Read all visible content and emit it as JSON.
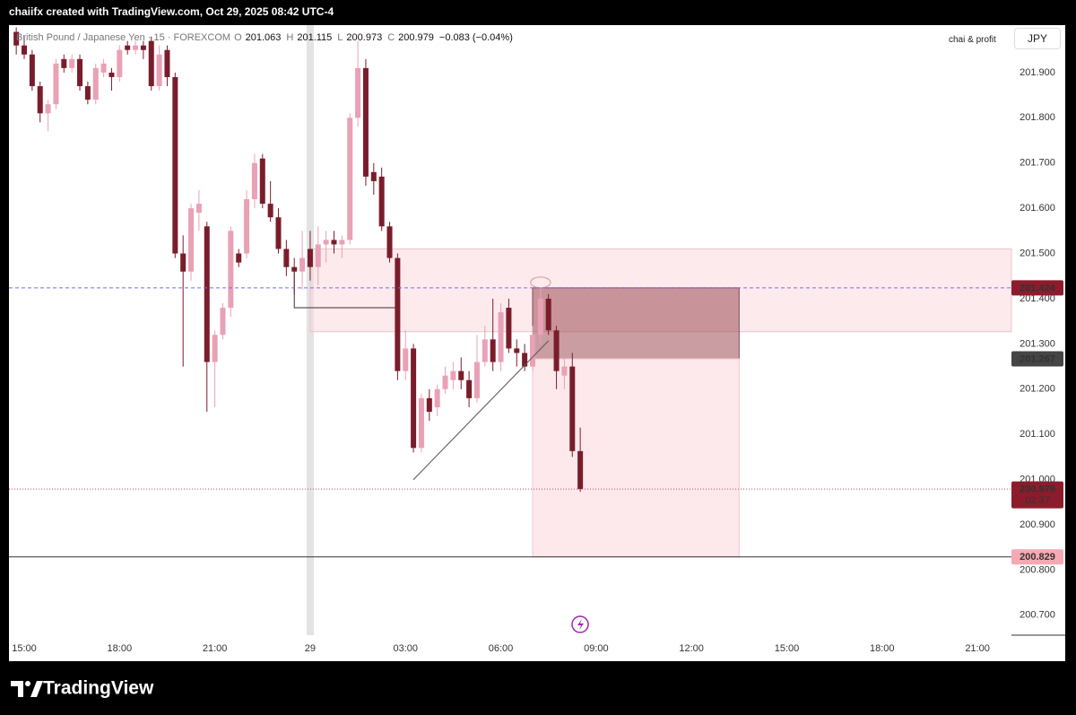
{
  "header": {
    "text": "chaiifx created with TradingView.com, Oct 29, 2025 08:42 UTC-4"
  },
  "chart_data": {
    "type": "candlestick",
    "symbol": "British Pound / Japanese Yen · 15 · FOREXCOM",
    "ohlc_legend": [
      {
        "label": "O",
        "value": 201.063
      },
      {
        "label": "H",
        "value": 201.115
      },
      {
        "label": "L",
        "value": 200.973
      },
      {
        "label": "C",
        "value": 200.979
      }
    ],
    "change": "−0.083 (−0.04%)",
    "account": "chai & profit",
    "currency": "JPY",
    "x": [
      -0.25,
      0,
      0.25,
      0.5,
      0.75,
      1,
      1.25,
      1.5,
      1.75,
      2,
      2.25,
      2.5,
      2.75,
      3,
      3.25,
      3.5,
      3.75,
      4,
      4.25,
      4.5,
      4.75,
      5,
      5.25,
      5.5,
      5.75,
      6,
      6.25,
      6.5,
      6.75,
      7,
      7.25,
      7.5,
      7.75,
      8,
      8.25,
      8.5,
      8.75,
      9,
      9.25,
      9.5,
      9.75,
      10,
      10.25,
      10.5,
      10.75,
      11,
      11.25,
      11.5,
      11.75,
      12,
      12.25,
      12.5,
      12.75,
      13,
      13.25,
      13.5,
      13.75,
      14,
      14.25,
      14.5,
      14.75,
      15,
      15.25,
      15.5,
      15.75,
      16,
      16.25,
      16.5,
      16.75,
      17,
      17.25,
      17.5
    ],
    "open": [
      201.99,
      201.96,
      201.94,
      201.87,
      201.81,
      201.83,
      201.93,
      201.91,
      201.93,
      201.87,
      201.84,
      201.9,
      201.9,
      201.89,
      201.96,
      201.95,
      201.96,
      201.97,
      201.87,
      201.95,
      201.89,
      201.5,
      201.46,
      201.59,
      201.56,
      201.26,
      201.32,
      201.38,
      201.5,
      201.5,
      201.62,
      201.71,
      201.61,
      201.58,
      201.51,
      201.47,
      201.46,
      201.51,
      201.47,
      201.52,
      201.53,
      201.52,
      201.53,
      201.8,
      201.91,
      201.68,
      201.67,
      201.56,
      201.49,
      201.24,
      201.29,
      201.07,
      201.18,
      201.16,
      201.2,
      201.22,
      201.24,
      201.22,
      201.18,
      201.26,
      201.31,
      201.26,
      201.38,
      201.29,
      201.28,
      201.25,
      201.32,
      201.4,
      201.33,
      201.23,
      201.25,
      201.063
    ],
    "high": [
      202.0,
      201.98,
      201.95,
      201.88,
      201.84,
      201.93,
      201.94,
      201.94,
      201.94,
      201.88,
      201.92,
      201.93,
      201.91,
      201.96,
      201.97,
      201.97,
      201.97,
      201.98,
      201.96,
      201.96,
      201.9,
      201.54,
      201.61,
      201.64,
      201.57,
      201.33,
      201.39,
      201.56,
      201.51,
      201.64,
      201.72,
      201.72,
      201.66,
      201.6,
      201.53,
      201.49,
      201.55,
      201.55,
      201.56,
      201.55,
      201.55,
      201.54,
      201.81,
      201.97,
      201.93,
      201.7,
      201.69,
      201.57,
      201.5,
      201.33,
      201.3,
      201.19,
      201.2,
      201.21,
      201.25,
      201.26,
      201.27,
      201.24,
      201.32,
      201.34,
      201.4,
      201.39,
      201.4,
      201.31,
      201.3,
      201.34,
      201.42,
      201.41,
      201.34,
      201.27,
      201.28,
      201.115
    ],
    "low": [
      201.94,
      201.93,
      201.86,
      201.79,
      201.77,
      201.82,
      201.9,
      201.9,
      201.86,
      201.83,
      201.83,
      201.89,
      201.86,
      201.88,
      201.94,
      201.94,
      201.93,
      201.86,
      201.86,
      201.87,
      201.49,
      201.25,
      201.44,
      201.55,
      201.15,
      201.16,
      201.31,
      201.36,
      201.47,
      201.49,
      201.6,
      201.6,
      201.57,
      201.5,
      201.45,
      201.41,
      201.42,
      201.44,
      201.43,
      201.48,
      201.5,
      201.49,
      201.52,
      201.78,
      201.65,
      201.63,
      201.55,
      201.48,
      201.22,
      201.22,
      201.06,
      201.06,
      201.13,
      201.14,
      201.19,
      201.2,
      201.2,
      201.16,
      201.17,
      201.25,
      201.24,
      201.24,
      201.28,
      201.25,
      201.24,
      201.24,
      201.3,
      201.32,
      201.2,
      201.2,
      201.05,
      200.973
    ],
    "close": [
      201.96,
      201.94,
      201.87,
      201.81,
      201.83,
      201.92,
      201.91,
      201.93,
      201.87,
      201.84,
      201.91,
      201.92,
      201.89,
      201.95,
      201.95,
      201.96,
      201.95,
      201.87,
      201.94,
      201.89,
      201.5,
      201.46,
      201.6,
      201.61,
      201.26,
      201.32,
      201.38,
      201.55,
      201.48,
      201.62,
      201.7,
      201.61,
      201.58,
      201.51,
      201.47,
      201.46,
      201.49,
      201.47,
      201.52,
      201.53,
      201.52,
      201.53,
      201.8,
      201.91,
      201.67,
      201.66,
      201.56,
      201.49,
      201.24,
      201.29,
      201.07,
      201.18,
      201.15,
      201.2,
      201.23,
      201.24,
      201.22,
      201.18,
      201.26,
      201.31,
      201.26,
      201.37,
      201.29,
      201.28,
      201.25,
      201.32,
      201.4,
      201.33,
      201.24,
      201.25,
      201.063,
      200.979
    ],
    "up_color": "#e9a1b6",
    "down_color": "#7a1d2b",
    "grid": false,
    "xlim": [
      -0.48,
      31.07
    ],
    "xticks": [
      {
        "value": 0,
        "label": "15:00"
      },
      {
        "value": 3,
        "label": "18:00"
      },
      {
        "value": 6,
        "label": "21:00"
      },
      {
        "value": 9,
        "label": "29"
      },
      {
        "value": 12,
        "label": "03:00"
      },
      {
        "value": 15,
        "label": "06:00"
      },
      {
        "value": 18,
        "label": "09:00"
      },
      {
        "value": 21,
        "label": "12:00"
      },
      {
        "value": 24,
        "label": "15:00"
      },
      {
        "value": 27,
        "label": "18:00"
      },
      {
        "value": 30,
        "label": "21:00"
      }
    ],
    "ylim": [
      200.656,
      202.005
    ],
    "yticks": [
      {
        "value": 200.7,
        "label": "200.700"
      },
      {
        "value": 200.8,
        "label": "200.800"
      },
      {
        "value": 200.9,
        "label": "200.900"
      },
      {
        "value": 201.0,
        "label": "201.000"
      },
      {
        "value": 201.1,
        "label": "201.100"
      },
      {
        "value": 201.2,
        "label": "201.200"
      },
      {
        "value": 201.3,
        "label": "201.300"
      },
      {
        "value": 201.4,
        "label": "201.400"
      },
      {
        "value": 201.5,
        "label": "201.500"
      },
      {
        "value": 201.6,
        "label": "201.600"
      },
      {
        "value": 201.7,
        "label": "201.700"
      },
      {
        "value": 201.8,
        "label": "201.800"
      },
      {
        "value": 201.9,
        "label": "201.900"
      }
    ],
    "highlight_x": 9,
    "zones": [
      {
        "x": [
          9,
          31.07
        ],
        "y": [
          201.51,
          201.327
        ],
        "color": "rgba(251,214,220,0.5)",
        "border": "#e8c4ca"
      },
      {
        "x": [
          16,
          22.5
        ],
        "y": [
          201.424,
          201.267
        ],
        "color": "rgba(150,60,72,0.5)",
        "border": "#8a4550"
      },
      {
        "x": [
          16,
          22.5
        ],
        "y": [
          201.267,
          200.829
        ],
        "color": "rgba(251,214,220,0.55)",
        "border": "#f2c8ce"
      }
    ],
    "trend_line": {
      "x": [
        12.25,
        16.5
      ],
      "y": [
        201.0,
        201.307
      ],
      "color": "#555555"
    },
    "segment": {
      "x": [
        8.5,
        8.5,
        11.75
      ],
      "y": [
        201.46,
        201.38,
        201.38
      ],
      "color": "#333333"
    },
    "marker": {
      "x": 16.25,
      "y": 201.436,
      "color": "#e2a0a8"
    },
    "levels": [
      {
        "value": 201.424,
        "style": "dashed",
        "color": "#6b6ff2",
        "label_bg": "#8c1c2c",
        "label_color": "#ffffff"
      },
      {
        "value": 201.267,
        "style": "none",
        "color": "#444444",
        "label_bg": "#454545",
        "label_color": "#ffffff"
      },
      {
        "value": 200.979,
        "style": "dotted",
        "color": "#c44a6a",
        "label_bg": "#8c1c2c",
        "label_color": "#ffffff",
        "countdown": "02:37"
      },
      {
        "value": 200.829,
        "style": "solid",
        "color": "#333333",
        "label_bg": "#f6a9b3",
        "label_color": "#3a1a1f"
      }
    ]
  },
  "footer": {
    "brand": "TradingView"
  }
}
